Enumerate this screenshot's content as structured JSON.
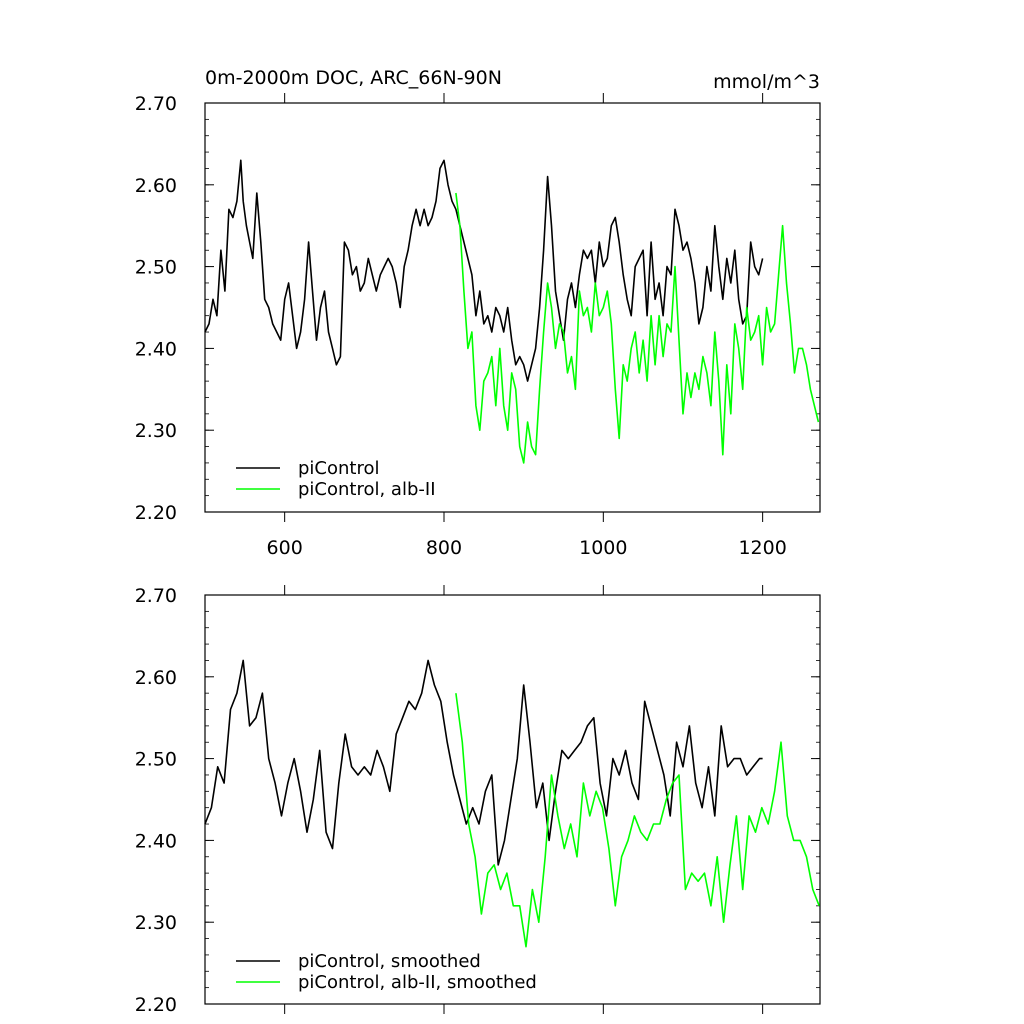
{
  "figure": {
    "left_title": "0m-2000m DOC, ARC_66N-90N",
    "right_title": "mmol/m^3"
  },
  "colors": {
    "black_series": "#000000",
    "green_series": "#00ff00"
  },
  "chart_data": [
    {
      "type": "line",
      "title": "0m-2000m DOC, ARC_66N-90N",
      "unit_label": "mmol/m^3",
      "xlim": [
        500,
        1272
      ],
      "ylim": [
        2.2,
        2.7
      ],
      "xticks": [
        600,
        800,
        1000,
        1200
      ],
      "xtick_labels": [
        "600",
        "800",
        "1000",
        "1200"
      ],
      "yticks": [
        2.2,
        2.3,
        2.4,
        2.5,
        2.6,
        2.7
      ],
      "ytick_labels": [
        "2.20",
        "2.30",
        "2.40",
        "2.50",
        "2.60",
        "2.70"
      ],
      "legend_position": "bottom-left",
      "series": [
        {
          "name": "piControl",
          "color": "#000000",
          "x": [
            500,
            505,
            510,
            515,
            520,
            525,
            530,
            535,
            540,
            545,
            548,
            552,
            556,
            560,
            565,
            570,
            575,
            580,
            585,
            590,
            595,
            600,
            605,
            610,
            615,
            620,
            625,
            630,
            635,
            640,
            645,
            650,
            655,
            660,
            665,
            670,
            675,
            680,
            685,
            690,
            695,
            700,
            705,
            710,
            715,
            720,
            725,
            730,
            735,
            740,
            745,
            750,
            755,
            760,
            765,
            770,
            775,
            780,
            785,
            790,
            795,
            800,
            805,
            810,
            815,
            820,
            825,
            830,
            835,
            840,
            845,
            850,
            855,
            860,
            865,
            870,
            875,
            880,
            885,
            890,
            895,
            900,
            905,
            910,
            915,
            920,
            925,
            930,
            935,
            940,
            945,
            950,
            955,
            960,
            965,
            970,
            975,
            980,
            985,
            990,
            995,
            1000,
            1005,
            1010,
            1015,
            1020,
            1025,
            1030,
            1035,
            1040,
            1045,
            1050,
            1055,
            1060,
            1065,
            1070,
            1075,
            1080,
            1085,
            1090,
            1095,
            1100,
            1105,
            1110,
            1115,
            1120,
            1125,
            1130,
            1135,
            1140,
            1145,
            1150,
            1155,
            1160,
            1165,
            1170,
            1175,
            1180,
            1185,
            1190,
            1195,
            1200
          ],
          "values": [
            2.42,
            2.43,
            2.46,
            2.44,
            2.52,
            2.47,
            2.57,
            2.56,
            2.58,
            2.63,
            2.58,
            2.55,
            2.53,
            2.51,
            2.59,
            2.53,
            2.46,
            2.45,
            2.43,
            2.42,
            2.41,
            2.46,
            2.48,
            2.44,
            2.4,
            2.42,
            2.46,
            2.53,
            2.47,
            2.41,
            2.45,
            2.47,
            2.42,
            2.4,
            2.38,
            2.39,
            2.53,
            2.52,
            2.49,
            2.5,
            2.47,
            2.48,
            2.51,
            2.49,
            2.47,
            2.49,
            2.5,
            2.51,
            2.5,
            2.48,
            2.45,
            2.5,
            2.52,
            2.55,
            2.57,
            2.55,
            2.57,
            2.55,
            2.56,
            2.58,
            2.62,
            2.63,
            2.6,
            2.58,
            2.57,
            2.55,
            2.53,
            2.51,
            2.49,
            2.44,
            2.47,
            2.43,
            2.44,
            2.42,
            2.45,
            2.44,
            2.42,
            2.45,
            2.41,
            2.38,
            2.39,
            2.38,
            2.36,
            2.38,
            2.4,
            2.45,
            2.52,
            2.61,
            2.55,
            2.47,
            2.44,
            2.41,
            2.46,
            2.48,
            2.45,
            2.49,
            2.52,
            2.51,
            2.52,
            2.48,
            2.53,
            2.5,
            2.51,
            2.55,
            2.56,
            2.53,
            2.49,
            2.46,
            2.44,
            2.5,
            2.51,
            2.52,
            2.44,
            2.53,
            2.46,
            2.48,
            2.44,
            2.5,
            2.49,
            2.57,
            2.55,
            2.52,
            2.53,
            2.51,
            2.48,
            2.43,
            2.45,
            2.5,
            2.47,
            2.55,
            2.5,
            2.46,
            2.51,
            2.48,
            2.52,
            2.46,
            2.43,
            2.44,
            2.53,
            2.5,
            2.49,
            2.51
          ]
        },
        {
          "name": "piControl, alb-II",
          "color": "#00ff00",
          "x": [
            815,
            820,
            825,
            830,
            835,
            840,
            845,
            850,
            855,
            860,
            865,
            870,
            875,
            880,
            885,
            890,
            895,
            900,
            905,
            910,
            915,
            920,
            925,
            930,
            935,
            940,
            945,
            950,
            955,
            960,
            965,
            970,
            975,
            980,
            985,
            990,
            995,
            1000,
            1005,
            1010,
            1015,
            1020,
            1025,
            1030,
            1035,
            1040,
            1045,
            1050,
            1055,
            1060,
            1065,
            1070,
            1075,
            1080,
            1085,
            1090,
            1095,
            1100,
            1105,
            1110,
            1115,
            1120,
            1125,
            1130,
            1135,
            1140,
            1145,
            1150,
            1155,
            1160,
            1165,
            1170,
            1175,
            1180,
            1185,
            1190,
            1195,
            1200,
            1205,
            1210,
            1215,
            1220,
            1225,
            1230,
            1235,
            1240,
            1245,
            1250,
            1255,
            1260,
            1265,
            1270
          ],
          "values": [
            2.59,
            2.55,
            2.47,
            2.4,
            2.42,
            2.33,
            2.3,
            2.36,
            2.37,
            2.39,
            2.33,
            2.4,
            2.33,
            2.3,
            2.37,
            2.35,
            2.28,
            2.26,
            2.31,
            2.28,
            2.27,
            2.35,
            2.42,
            2.48,
            2.45,
            2.4,
            2.43,
            2.42,
            2.37,
            2.39,
            2.35,
            2.47,
            2.44,
            2.45,
            2.42,
            2.48,
            2.44,
            2.45,
            2.47,
            2.43,
            2.35,
            2.29,
            2.38,
            2.36,
            2.4,
            2.42,
            2.37,
            2.41,
            2.36,
            2.44,
            2.38,
            2.44,
            2.39,
            2.43,
            2.42,
            2.5,
            2.41,
            2.32,
            2.37,
            2.34,
            2.37,
            2.35,
            2.39,
            2.37,
            2.33,
            2.42,
            2.36,
            2.27,
            2.38,
            2.32,
            2.43,
            2.4,
            2.35,
            2.45,
            2.41,
            2.42,
            2.44,
            2.38,
            2.45,
            2.42,
            2.43,
            2.49,
            2.55,
            2.48,
            2.43,
            2.37,
            2.4,
            2.4,
            2.38,
            2.35,
            2.33,
            2.31
          ]
        }
      ]
    },
    {
      "type": "line",
      "title": "",
      "xlim": [
        500,
        1272
      ],
      "ylim": [
        2.2,
        2.7
      ],
      "xticks": [
        600,
        800,
        1000,
        1200
      ],
      "xtick_labels": [],
      "yticks": [
        2.2,
        2.3,
        2.4,
        2.5,
        2.6,
        2.7
      ],
      "ytick_labels": [
        "2.20",
        "2.30",
        "2.40",
        "2.50",
        "2.60",
        "2.70"
      ],
      "legend_position": "bottom-left",
      "series": [
        {
          "name": "piControl, smoothed",
          "color": "#000000",
          "x": [
            500,
            508,
            516,
            524,
            532,
            540,
            548,
            556,
            564,
            572,
            580,
            588,
            596,
            604,
            612,
            620,
            628,
            636,
            644,
            652,
            660,
            668,
            676,
            684,
            692,
            700,
            708,
            716,
            724,
            732,
            740,
            748,
            756,
            764,
            772,
            780,
            788,
            796,
            804,
            812,
            820,
            828,
            836,
            844,
            852,
            860,
            868,
            876,
            884,
            892,
            900,
            908,
            916,
            924,
            932,
            940,
            948,
            956,
            964,
            972,
            980,
            988,
            996,
            1004,
            1012,
            1020,
            1028,
            1036,
            1044,
            1052,
            1060,
            1068,
            1076,
            1084,
            1092,
            1100,
            1108,
            1116,
            1124,
            1132,
            1140,
            1148,
            1156,
            1164,
            1172,
            1180,
            1188,
            1196,
            1200
          ],
          "values": [
            2.42,
            2.44,
            2.49,
            2.47,
            2.56,
            2.58,
            2.62,
            2.54,
            2.55,
            2.58,
            2.5,
            2.47,
            2.43,
            2.47,
            2.5,
            2.46,
            2.41,
            2.45,
            2.51,
            2.41,
            2.39,
            2.47,
            2.53,
            2.49,
            2.48,
            2.49,
            2.48,
            2.51,
            2.49,
            2.46,
            2.53,
            2.55,
            2.57,
            2.56,
            2.58,
            2.62,
            2.59,
            2.57,
            2.52,
            2.48,
            2.45,
            2.42,
            2.44,
            2.42,
            2.46,
            2.48,
            2.37,
            2.4,
            2.45,
            2.5,
            2.59,
            2.52,
            2.44,
            2.47,
            2.4,
            2.46,
            2.51,
            2.5,
            2.51,
            2.52,
            2.54,
            2.55,
            2.47,
            2.43,
            2.5,
            2.48,
            2.51,
            2.47,
            2.45,
            2.57,
            2.54,
            2.51,
            2.48,
            2.43,
            2.52,
            2.49,
            2.54,
            2.47,
            2.44,
            2.49,
            2.43,
            2.54,
            2.49,
            2.5,
            2.5,
            2.48,
            2.49,
            2.5,
            2.5
          ]
        },
        {
          "name": "piControl, alb-II, smoothed",
          "color": "#00ff00",
          "x": [
            815,
            823,
            831,
            839,
            847,
            855,
            863,
            871,
            879,
            887,
            895,
            903,
            911,
            919,
            927,
            935,
            943,
            951,
            959,
            967,
            975,
            983,
            991,
            999,
            1007,
            1015,
            1023,
            1031,
            1039,
            1047,
            1055,
            1063,
            1071,
            1079,
            1087,
            1095,
            1103,
            1111,
            1119,
            1127,
            1135,
            1143,
            1151,
            1159,
            1167,
            1175,
            1183,
            1191,
            1199,
            1207,
            1215,
            1223,
            1231,
            1239,
            1247,
            1255,
            1263,
            1271
          ],
          "values": [
            2.58,
            2.52,
            2.42,
            2.38,
            2.31,
            2.36,
            2.37,
            2.34,
            2.36,
            2.32,
            2.32,
            2.27,
            2.34,
            2.3,
            2.38,
            2.48,
            2.43,
            2.39,
            2.42,
            2.38,
            2.47,
            2.43,
            2.46,
            2.44,
            2.39,
            2.32,
            2.38,
            2.4,
            2.43,
            2.41,
            2.4,
            2.42,
            2.42,
            2.45,
            2.47,
            2.48,
            2.34,
            2.36,
            2.35,
            2.36,
            2.32,
            2.38,
            2.3,
            2.37,
            2.43,
            2.34,
            2.43,
            2.41,
            2.44,
            2.42,
            2.46,
            2.52,
            2.43,
            2.4,
            2.4,
            2.38,
            2.34,
            2.32
          ]
        }
      ]
    }
  ]
}
